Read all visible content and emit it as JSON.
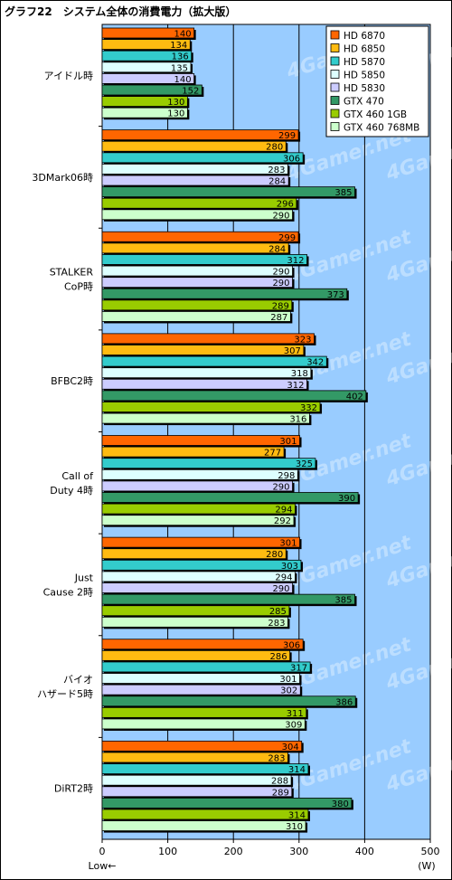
{
  "title": "グラフ22　システム全体の消費電力（拡大版）",
  "chart_data": {
    "type": "bar",
    "orientation": "horizontal",
    "title": "グラフ22　システム全体の消費電力（拡大版）",
    "unit_label": "(W)",
    "direction_label": "Low←",
    "xlim": [
      0,
      500
    ],
    "xticks": [
      0,
      100,
      200,
      300,
      400,
      500
    ],
    "watermark": "4Gamer.net",
    "legend_position": "top-right",
    "categories": [
      "アイドル時",
      "3DMark06時",
      "STALKER\nCoP時",
      "BFBC2時",
      "Call of\nDuty 4時",
      "Just\nCause 2時",
      "バイオ\nハザード5時",
      "DiRT2時"
    ],
    "series": [
      {
        "name": "HD 6870",
        "color": "#ff6600",
        "values": [
          140,
          299,
          299,
          323,
          301,
          301,
          306,
          304
        ]
      },
      {
        "name": "HD 6850",
        "color": "#ffbb11",
        "values": [
          134,
          280,
          284,
          307,
          277,
          280,
          286,
          283
        ]
      },
      {
        "name": "HD 5870",
        "color": "#33cccc",
        "values": [
          136,
          306,
          312,
          342,
          325,
          303,
          317,
          314
        ]
      },
      {
        "name": "HD 5850",
        "color": "#ddffff",
        "values": [
          135,
          283,
          290,
          318,
          298,
          294,
          301,
          288
        ]
      },
      {
        "name": "HD 5830",
        "color": "#ccccff",
        "values": [
          140,
          284,
          290,
          312,
          290,
          290,
          302,
          289
        ]
      },
      {
        "name": "GTX 470",
        "color": "#339966",
        "values": [
          152,
          385,
          373,
          402,
          390,
          385,
          386,
          380
        ]
      },
      {
        "name": "GTX 460 1GB",
        "color": "#99cc00",
        "values": [
          130,
          296,
          289,
          332,
          294,
          285,
          311,
          314
        ]
      },
      {
        "name": "GTX 460 768MB",
        "color": "#ccffcc",
        "values": [
          130,
          290,
          287,
          316,
          292,
          283,
          309,
          310
        ]
      }
    ]
  },
  "colors": {
    "plot_background": "#99ccff",
    "grid": "#000000"
  }
}
